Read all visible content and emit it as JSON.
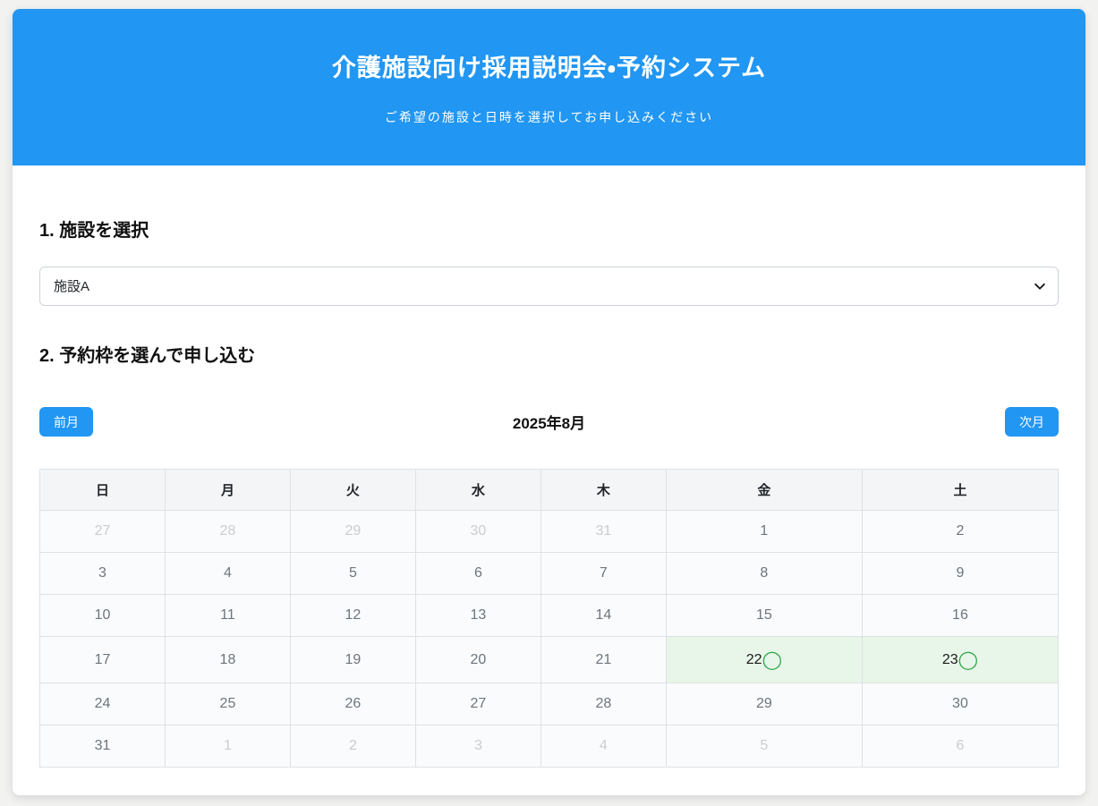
{
  "colors": {
    "accent_blue": "#2196f3",
    "available_bg": "#e8f5e9",
    "available_marker_green": "#28a745",
    "muted_day": "#cccccc",
    "current_day": "#6c757d"
  },
  "header": {
    "title": "介護施設向け採用説明会・予約システム",
    "subtitle": "ご希望の施設と日時を選択してお申し込みください"
  },
  "facility_section": {
    "heading": "1. 施設を選択",
    "selected_option": "施設A"
  },
  "booking_section": {
    "heading": "2. 予約枠を選んで申し込む"
  },
  "calendar": {
    "prev_button_label": "前月",
    "next_button_label": "次月",
    "month_title": "2025年8月",
    "weekdays": [
      "日",
      "月",
      "火",
      "水",
      "木",
      "金",
      "土"
    ],
    "available_marker": "◯",
    "weeks": [
      [
        {
          "day": "27",
          "type": "prev"
        },
        {
          "day": "28",
          "type": "prev"
        },
        {
          "day": "29",
          "type": "prev"
        },
        {
          "day": "30",
          "type": "prev"
        },
        {
          "day": "31",
          "type": "prev"
        },
        {
          "day": "1",
          "type": "current"
        },
        {
          "day": "2",
          "type": "current"
        }
      ],
      [
        {
          "day": "3",
          "type": "current"
        },
        {
          "day": "4",
          "type": "current"
        },
        {
          "day": "5",
          "type": "current"
        },
        {
          "day": "6",
          "type": "current"
        },
        {
          "day": "7",
          "type": "current"
        },
        {
          "day": "8",
          "type": "current"
        },
        {
          "day": "9",
          "type": "current"
        }
      ],
      [
        {
          "day": "10",
          "type": "current"
        },
        {
          "day": "11",
          "type": "current"
        },
        {
          "day": "12",
          "type": "current"
        },
        {
          "day": "13",
          "type": "current"
        },
        {
          "day": "14",
          "type": "current"
        },
        {
          "day": "15",
          "type": "current"
        },
        {
          "day": "16",
          "type": "current"
        }
      ],
      [
        {
          "day": "17",
          "type": "current"
        },
        {
          "day": "18",
          "type": "current"
        },
        {
          "day": "19",
          "type": "current"
        },
        {
          "day": "20",
          "type": "current"
        },
        {
          "day": "21",
          "type": "current"
        },
        {
          "day": "22",
          "type": "available"
        },
        {
          "day": "23",
          "type": "available"
        }
      ],
      [
        {
          "day": "24",
          "type": "current"
        },
        {
          "day": "25",
          "type": "current"
        },
        {
          "day": "26",
          "type": "current"
        },
        {
          "day": "27",
          "type": "current"
        },
        {
          "day": "28",
          "type": "current"
        },
        {
          "day": "29",
          "type": "current"
        },
        {
          "day": "30",
          "type": "current"
        }
      ],
      [
        {
          "day": "31",
          "type": "current"
        },
        {
          "day": "1",
          "type": "next"
        },
        {
          "day": "2",
          "type": "next"
        },
        {
          "day": "3",
          "type": "next"
        },
        {
          "day": "4",
          "type": "next"
        },
        {
          "day": "5",
          "type": "next"
        },
        {
          "day": "6",
          "type": "next"
        }
      ]
    ]
  }
}
